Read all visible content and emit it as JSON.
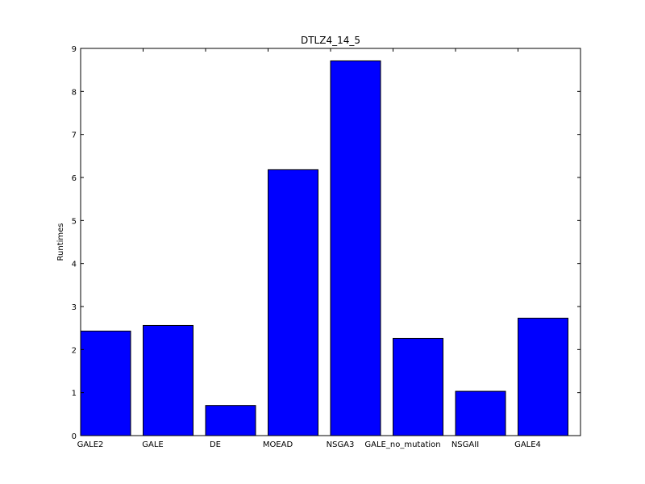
{
  "chart_data": {
    "type": "bar",
    "title": "DTLZ4_14_5",
    "xlabel": "",
    "ylabel": "Runtimes",
    "categories": [
      "GALE2",
      "GALE",
      "DE",
      "MOEAD",
      "NSGA3",
      "GALE_no_mutation",
      "NSGAII",
      "GALE4"
    ],
    "values": [
      2.43,
      2.56,
      0.7,
      6.18,
      8.71,
      2.26,
      1.03,
      2.73
    ],
    "ylim": [
      0,
      9
    ],
    "yticks": [
      "0",
      "1",
      "2",
      "3",
      "4",
      "5",
      "6",
      "7",
      "8",
      "9"
    ],
    "bar_color": "#0000ff",
    "grid": false
  }
}
